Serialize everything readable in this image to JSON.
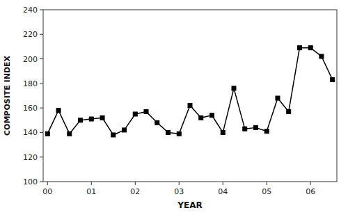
{
  "chart_data": {
    "type": "line",
    "x": [
      0,
      0.25,
      0.5,
      0.75,
      1.0,
      1.25,
      1.5,
      1.75,
      2.0,
      2.25,
      2.5,
      2.75,
      3.0,
      3.25,
      3.5,
      3.75,
      4.0,
      4.25,
      4.5,
      4.75,
      5.0,
      5.25,
      5.5,
      5.75,
      6.0,
      6.25,
      6.5
    ],
    "values": [
      139,
      158,
      139,
      150,
      151,
      152,
      138,
      142,
      155,
      157,
      148,
      140,
      139,
      162,
      152,
      154,
      140,
      176,
      143,
      144,
      141,
      168,
      157,
      209,
      209,
      202,
      183
    ],
    "xlim": [
      -0.1,
      6.6
    ],
    "ylim": [
      100,
      240
    ],
    "xticks": [
      {
        "value": 0,
        "label": "00"
      },
      {
        "value": 1,
        "label": "01"
      },
      {
        "value": 2,
        "label": "02"
      },
      {
        "value": 3,
        "label": "03"
      },
      {
        "value": 4,
        "label": "04"
      },
      {
        "value": 5,
        "label": "05"
      },
      {
        "value": 6,
        "label": "06"
      }
    ],
    "yticks": [
      100,
      120,
      140,
      160,
      180,
      200,
      220,
      240
    ],
    "x_label": "YEAR",
    "y_label": "COMPOSITE INDEX",
    "color": "#000000",
    "marker": "square",
    "grid": false
  }
}
